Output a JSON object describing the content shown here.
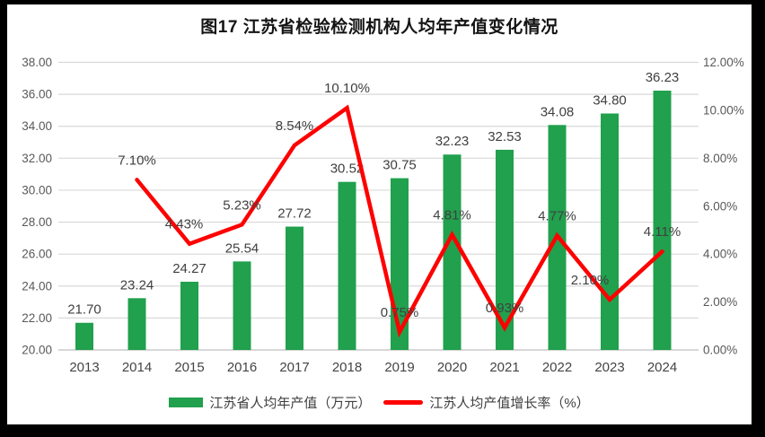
{
  "title": "图17  江苏省检验检测机构人均年产值变化情况",
  "chart_data": {
    "type": "combo-bar-line",
    "title": "图17  江苏省检验检测机构人均年产值变化情况",
    "categories": [
      "2013",
      "2014",
      "2015",
      "2016",
      "2017",
      "2018",
      "2019",
      "2020",
      "2021",
      "2022",
      "2023",
      "2024"
    ],
    "series": [
      {
        "name": "江苏省人均年产值（万元）",
        "type": "bar",
        "axis": "left",
        "color": "#21A04D",
        "values": [
          21.7,
          23.24,
          24.27,
          25.54,
          27.72,
          30.52,
          30.75,
          32.23,
          32.53,
          34.08,
          34.8,
          36.23
        ]
      },
      {
        "name": "江苏人均产值增长率（%）",
        "type": "line",
        "axis": "right",
        "color": "#FE0000",
        "values": [
          null,
          7.1,
          4.43,
          5.23,
          8.54,
          10.1,
          0.75,
          4.81,
          0.93,
          4.77,
          2.1,
          4.11
        ],
        "label_dx": {
          "2": -6,
          "10": -22
        }
      }
    ],
    "left_axis": {
      "min": 20,
      "max": 38,
      "step": 2,
      "tick_format": "0.00"
    },
    "right_axis": {
      "min": 0,
      "max": 12,
      "step": 2,
      "tick_format": "0.00%"
    },
    "gridlines": true,
    "legend_position": "bottom",
    "colors": {
      "gridline": "#D9D9D9",
      "axis_line": "#BFBFBF",
      "axis_text": "#595959",
      "data_label": "#404040",
      "background": "#FFFFFF",
      "frame": "#000000"
    }
  }
}
